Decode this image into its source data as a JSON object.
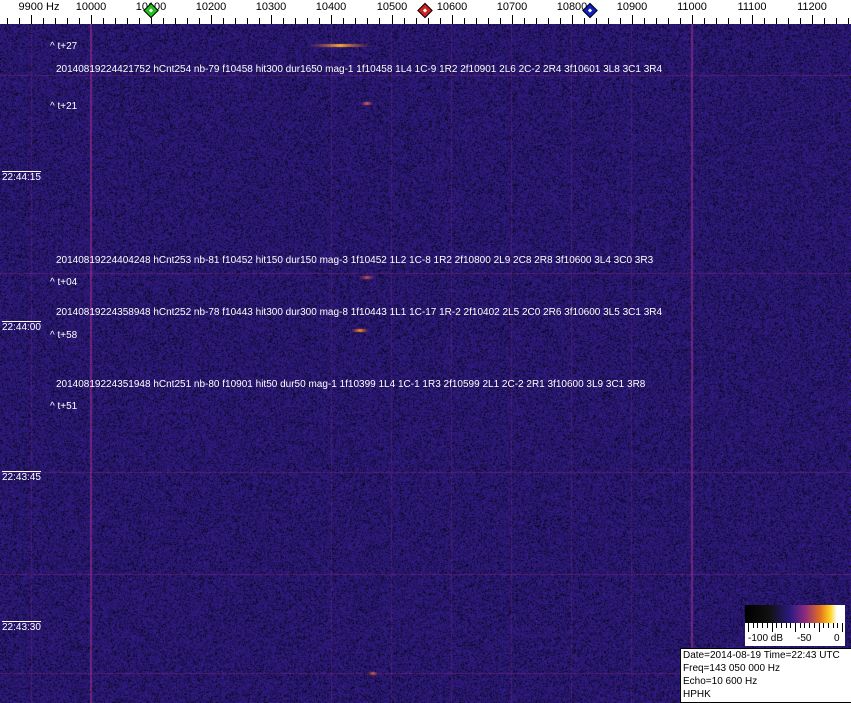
{
  "scale": {
    "unit_label": "9900 Hz",
    "labels": [
      "10000",
      "10100",
      "10200",
      "10300",
      "10400",
      "10500",
      "10600",
      "10700",
      "10800",
      "10900",
      "11000",
      "11100",
      "11200"
    ],
    "markers": [
      {
        "name": "green-marker",
        "freq_hz": 10100,
        "color": "#20c020"
      },
      {
        "name": "red-marker",
        "freq_hz": 10555,
        "color": "#d02020"
      },
      {
        "name": "blue-marker",
        "freq_hz": 10830,
        "color": "#1020c0"
      }
    ]
  },
  "annotations": [
    {
      "kind": "offset",
      "text": "^ t+27"
    },
    {
      "kind": "detection",
      "text": "20140819224421752 hCnt254 nb-79 f10458 hit300 dur1650 mag-1 1f10458 1L4 1C-9 1R2 2f10901 2L6 2C-2 2R4 3f10601 3L8 3C1 3R4"
    },
    {
      "kind": "offset",
      "text": "^ t+21"
    },
    {
      "kind": "detection",
      "text": "20140819224404248 hCnt253 nb-81 f10452 hit150 dur150 mag-3 1f10452 1L2 1C-8 1R2 2f10800 2L9 2C8 2R8 3f10600 3L4 3C0 3R3"
    },
    {
      "kind": "offset",
      "text": "^ t+04"
    },
    {
      "kind": "detection",
      "text": "20140819224358948 hCnt252 nb-78 f10443 hit300 dur300 mag-8 1f10443 1L1 1C-17 1R-2 2f10402 2L5 2C0 2R6 3f10600 3L5 3C1 3R4"
    },
    {
      "kind": "offset",
      "text": "^ t+58"
    },
    {
      "kind": "detection",
      "text": "20140819224351948 hCnt251 nb-80 f10901 hit50 dur50 mag-1 1f10399 1L4 1C-1 1R3 2f10599 2L1 2C-2 2R1 3f10600 3L9 3C1 3R8"
    },
    {
      "kind": "offset",
      "text": "^ t+51"
    }
  ],
  "time_labels": [
    "22:44:15",
    "22:44:00",
    "22:43:45",
    "22:43:30"
  ],
  "colorbar": {
    "labels": [
      "-100 dB",
      "-50",
      "0"
    ]
  },
  "info": {
    "line1": "Date=2014-08-19 Time=22:43 UTC",
    "line2": "Freq=143 050 000 Hz",
    "line3": "Echo=10 600 Hz",
    "line4": "HPHK"
  }
}
